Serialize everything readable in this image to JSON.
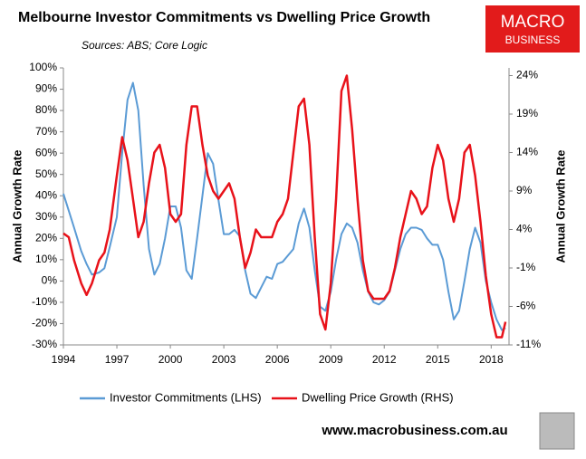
{
  "chart_data": {
    "type": "line",
    "title": "Melbourne Investor Commitments vs Dwelling Price Growth",
    "subtitle": "Sources: ABS; Core Logic",
    "ylabel": "Annual Growth Rate",
    "y2label": "Annual Growth Rate",
    "logo": {
      "top": "MACRO",
      "bottom": "BUSINESS"
    },
    "footer": "www.macrobusiness.com.au",
    "x": [
      1994.0,
      1994.3,
      1994.6,
      1995.0,
      1995.3,
      1995.6,
      1996.0,
      1996.3,
      1996.6,
      1997.0,
      1997.3,
      1997.6,
      1997.9,
      1998.2,
      1998.5,
      1998.8,
      1999.1,
      1999.4,
      1999.7,
      2000.0,
      2000.3,
      2000.6,
      2000.9,
      2001.2,
      2001.5,
      2001.8,
      2002.1,
      2002.4,
      2002.7,
      2003.0,
      2003.3,
      2003.6,
      2003.9,
      2004.2,
      2004.5,
      2004.8,
      2005.1,
      2005.4,
      2005.7,
      2006.0,
      2006.3,
      2006.6,
      2006.9,
      2007.2,
      2007.5,
      2007.8,
      2008.1,
      2008.4,
      2008.7,
      2009.0,
      2009.3,
      2009.6,
      2009.9,
      2010.2,
      2010.5,
      2010.8,
      2011.1,
      2011.4,
      2011.7,
      2012.0,
      2012.3,
      2012.6,
      2012.9,
      2013.2,
      2013.5,
      2013.8,
      2014.1,
      2014.4,
      2014.7,
      2015.0,
      2015.3,
      2015.6,
      2015.9,
      2016.2,
      2016.5,
      2016.8,
      2017.1,
      2017.4,
      2017.7,
      2018.0,
      2018.3,
      2018.6,
      2018.8
    ],
    "series": [
      {
        "name": "Investor Commitments (LHS)",
        "color": "#5b9bd5",
        "axis": "y",
        "values": [
          41,
          33,
          25,
          14,
          8,
          3,
          4,
          6,
          16,
          30,
          60,
          85,
          93,
          80,
          45,
          15,
          3,
          8,
          20,
          35,
          35,
          25,
          5,
          1,
          20,
          40,
          60,
          55,
          38,
          22,
          22,
          24,
          21,
          5,
          -6,
          -8,
          -3,
          2,
          1,
          8,
          9,
          12,
          15,
          27,
          34,
          25,
          5,
          -12,
          -14,
          -5,
          10,
          22,
          27,
          25,
          18,
          5,
          -5,
          -10,
          -11,
          -9,
          -5,
          5,
          15,
          22,
          25,
          25,
          24,
          20,
          17,
          17,
          10,
          -5,
          -18,
          -14,
          0,
          15,
          25,
          18,
          0,
          -10,
          -18,
          -23,
          -22
        ]
      },
      {
        "name": "Dwelling Price Growth (RHS)",
        "color": "#e8121a",
        "axis": "y2",
        "values": [
          3.5,
          3,
          0,
          -3,
          -4.5,
          -3,
          0,
          1,
          4,
          11,
          16,
          13,
          8,
          3,
          5,
          10,
          14,
          15,
          12,
          6,
          5,
          6,
          15,
          20,
          20,
          15,
          11,
          9,
          8,
          9,
          10,
          8,
          3,
          -1,
          1,
          4,
          3,
          3,
          3,
          5,
          6,
          8,
          14,
          20,
          21,
          15,
          3,
          -7,
          -9,
          -3,
          8,
          22,
          24,
          17,
          8,
          0,
          -4,
          -5,
          -5,
          -5,
          -4,
          -1,
          3,
          6,
          9,
          8,
          6,
          7,
          12,
          15,
          13,
          8,
          5,
          8,
          14,
          15,
          11,
          5,
          -2,
          -7,
          -10,
          -10,
          -8
        ]
      }
    ],
    "xlim": [
      1994,
      2019
    ],
    "xticks": [
      1994,
      1997,
      2000,
      2003,
      2006,
      2009,
      2012,
      2015,
      2018
    ],
    "ylim": [
      -30,
      100
    ],
    "yticks": [
      {
        "value": -30,
        "label": "-30%"
      },
      {
        "value": -20,
        "label": "-20%"
      },
      {
        "value": -10,
        "label": "-10%"
      },
      {
        "value": 0,
        "label": "0%"
      },
      {
        "value": 10,
        "label": "10%"
      },
      {
        "value": 20,
        "label": "20%"
      },
      {
        "value": 30,
        "label": "30%"
      },
      {
        "value": 40,
        "label": "40%"
      },
      {
        "value": 50,
        "label": "50%"
      },
      {
        "value": 60,
        "label": "60%"
      },
      {
        "value": 70,
        "label": "70%"
      },
      {
        "value": 80,
        "label": "80%"
      },
      {
        "value": 90,
        "label": "90%"
      },
      {
        "value": 100,
        "label": "100%"
      }
    ],
    "y2lim": [
      -11,
      25
    ],
    "y2ticks": [
      {
        "value": -11,
        "label": "-11%"
      },
      {
        "value": -6,
        "label": "-6%"
      },
      {
        "value": -1,
        "label": "-1%"
      },
      {
        "value": 4,
        "label": "4%"
      },
      {
        "value": 9,
        "label": "9%"
      },
      {
        "value": 14,
        "label": "14%"
      },
      {
        "value": 19,
        "label": "19%"
      },
      {
        "value": 24,
        "label": "24%"
      }
    ],
    "grid": false,
    "legend": "bottom"
  }
}
